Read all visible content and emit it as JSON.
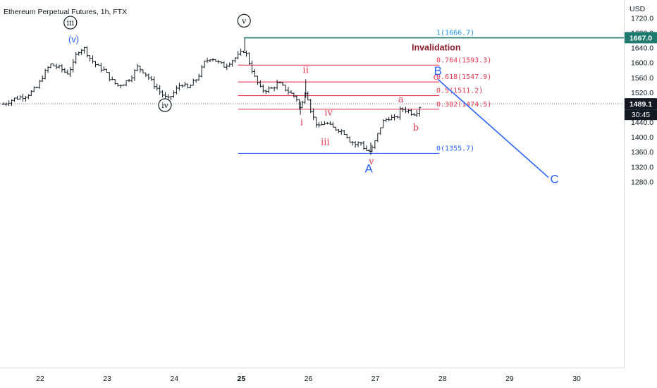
{
  "chart_data": {
    "type": "candlestick",
    "title": "Ethereum Perpetual Futures, 1h, FTX",
    "currency": "USD",
    "y_range": [
      1260,
      1735
    ],
    "y_ticks": [
      "1720.0",
      "1680.0",
      "1640.0",
      "1600.0",
      "1560.0",
      "1520.0",
      "1480.0",
      "1440.0",
      "1400.0",
      "1360.0",
      "1320.0",
      "1280.0"
    ],
    "x_range_days": [
      21.45,
      31.0
    ],
    "x_ticks": [
      "22",
      "23",
      "24",
      "25",
      "26",
      "27",
      "28",
      "29",
      "30"
    ],
    "price_badges": [
      {
        "label": "1667.0",
        "value": 1667.0,
        "color": "#1e7a6e"
      },
      {
        "label": "1489.1",
        "value": 1489.1,
        "color": "#131722"
      }
    ],
    "countdown": "30:45",
    "current_price": 1489.1,
    "invalidation_level": {
      "value": 1666.7,
      "label": "Invalidation"
    },
    "fib_levels": [
      {
        "ratio": "1",
        "value": 1666.7,
        "label": "1(1666.7)",
        "color": "#2196f3"
      },
      {
        "ratio": "0.764",
        "value": 1593.3,
        "label": "0.764(1593.3)",
        "color": "#e53950"
      },
      {
        "ratio": "0.618",
        "value": 1547.9,
        "label": "0.618(1547.9)",
        "color": "#e53950"
      },
      {
        "ratio": "0.5",
        "value": 1511.2,
        "label": "0.5(1511.2)",
        "color": "#e53950"
      },
      {
        "ratio": "0.382",
        "value": 1474.5,
        "label": "0.382(1474.5)",
        "color": "#e53950"
      },
      {
        "ratio": "0",
        "value": 1355.7,
        "label": "0(1355.7)",
        "color": "#2962ff"
      }
    ],
    "wave_labels": [
      {
        "text": "iii",
        "x": 22.45,
        "y": 1700,
        "style": "circle"
      },
      {
        "text": "(v)",
        "x": 22.5,
        "y": 1655,
        "style": "blue"
      },
      {
        "text": "iv",
        "x": 23.86,
        "y": 1478,
        "style": "circle"
      },
      {
        "text": "v",
        "x": 25.04,
        "y": 1705,
        "style": "circle"
      },
      {
        "text": "ii",
        "x": 25.96,
        "y": 1572,
        "style": "red"
      },
      {
        "text": "i",
        "x": 25.9,
        "y": 1432,
        "style": "red"
      },
      {
        "text": "iv",
        "x": 26.3,
        "y": 1458,
        "style": "red"
      },
      {
        "text": "iii",
        "x": 26.25,
        "y": 1378,
        "style": "red"
      },
      {
        "text": "v",
        "x": 26.94,
        "y": 1326,
        "style": "red"
      },
      {
        "text": "A",
        "x": 26.9,
        "y": 1304,
        "style": "blue-big"
      },
      {
        "text": "a",
        "x": 27.38,
        "y": 1493,
        "style": "red"
      },
      {
        "text": "b",
        "x": 27.6,
        "y": 1417,
        "style": "red"
      },
      {
        "text": "c",
        "x": 27.9,
        "y": 1554,
        "style": "red"
      },
      {
        "text": "B",
        "x": 27.93,
        "y": 1567,
        "style": "blue-big"
      },
      {
        "text": "C",
        "x": 29.67,
        "y": 1276,
        "style": "blue-big"
      }
    ],
    "projection": [
      {
        "x": 27.93,
        "y": 1555
      },
      {
        "x": 29.58,
        "y": 1291
      }
    ],
    "candle_path": [
      [
        21.45,
        1488
      ],
      [
        21.6,
        1502
      ],
      [
        21.8,
        1512
      ],
      [
        21.95,
        1532
      ],
      [
        22.05,
        1568
      ],
      [
        22.15,
        1595
      ],
      [
        22.3,
        1585
      ],
      [
        22.4,
        1570
      ],
      [
        22.5,
        1598
      ],
      [
        22.55,
        1630
      ],
      [
        22.65,
        1640
      ],
      [
        22.75,
        1610
      ],
      [
        22.85,
        1590
      ],
      [
        22.95,
        1580
      ],
      [
        23.05,
        1555
      ],
      [
        23.15,
        1538
      ],
      [
        23.25,
        1545
      ],
      [
        23.35,
        1560
      ],
      [
        23.45,
        1588
      ],
      [
        23.55,
        1575
      ],
      [
        23.7,
        1540
      ],
      [
        23.8,
        1518
      ],
      [
        23.9,
        1500
      ],
      [
        24.0,
        1520
      ],
      [
        24.1,
        1545
      ],
      [
        24.2,
        1530
      ],
      [
        24.35,
        1560
      ],
      [
        24.45,
        1600
      ],
      [
        24.55,
        1615
      ],
      [
        24.65,
        1600
      ],
      [
        24.75,
        1590
      ],
      [
        24.85,
        1605
      ],
      [
        24.95,
        1618
      ],
      [
        25.05,
        1635
      ],
      [
        25.12,
        1598
      ],
      [
        25.2,
        1560
      ],
      [
        25.3,
        1525
      ],
      [
        25.45,
        1530
      ],
      [
        25.55,
        1545
      ],
      [
        25.65,
        1530
      ],
      [
        25.75,
        1515
      ],
      [
        25.82,
        1505
      ],
      [
        25.88,
        1470
      ],
      [
        25.96,
        1530
      ],
      [
        26.05,
        1460
      ],
      [
        26.15,
        1425
      ],
      [
        26.25,
        1440
      ],
      [
        26.35,
        1425
      ],
      [
        26.45,
        1420
      ],
      [
        26.55,
        1410
      ],
      [
        26.62,
        1390
      ],
      [
        26.7,
        1380
      ],
      [
        26.78,
        1385
      ],
      [
        26.85,
        1365
      ],
      [
        26.93,
        1360
      ],
      [
        27.02,
        1400
      ],
      [
        27.1,
        1440
      ],
      [
        27.2,
        1452
      ],
      [
        27.3,
        1448
      ],
      [
        27.38,
        1476
      ],
      [
        27.48,
        1472
      ],
      [
        27.56,
        1462
      ],
      [
        27.62,
        1470
      ],
      [
        27.68,
        1489
      ]
    ]
  }
}
